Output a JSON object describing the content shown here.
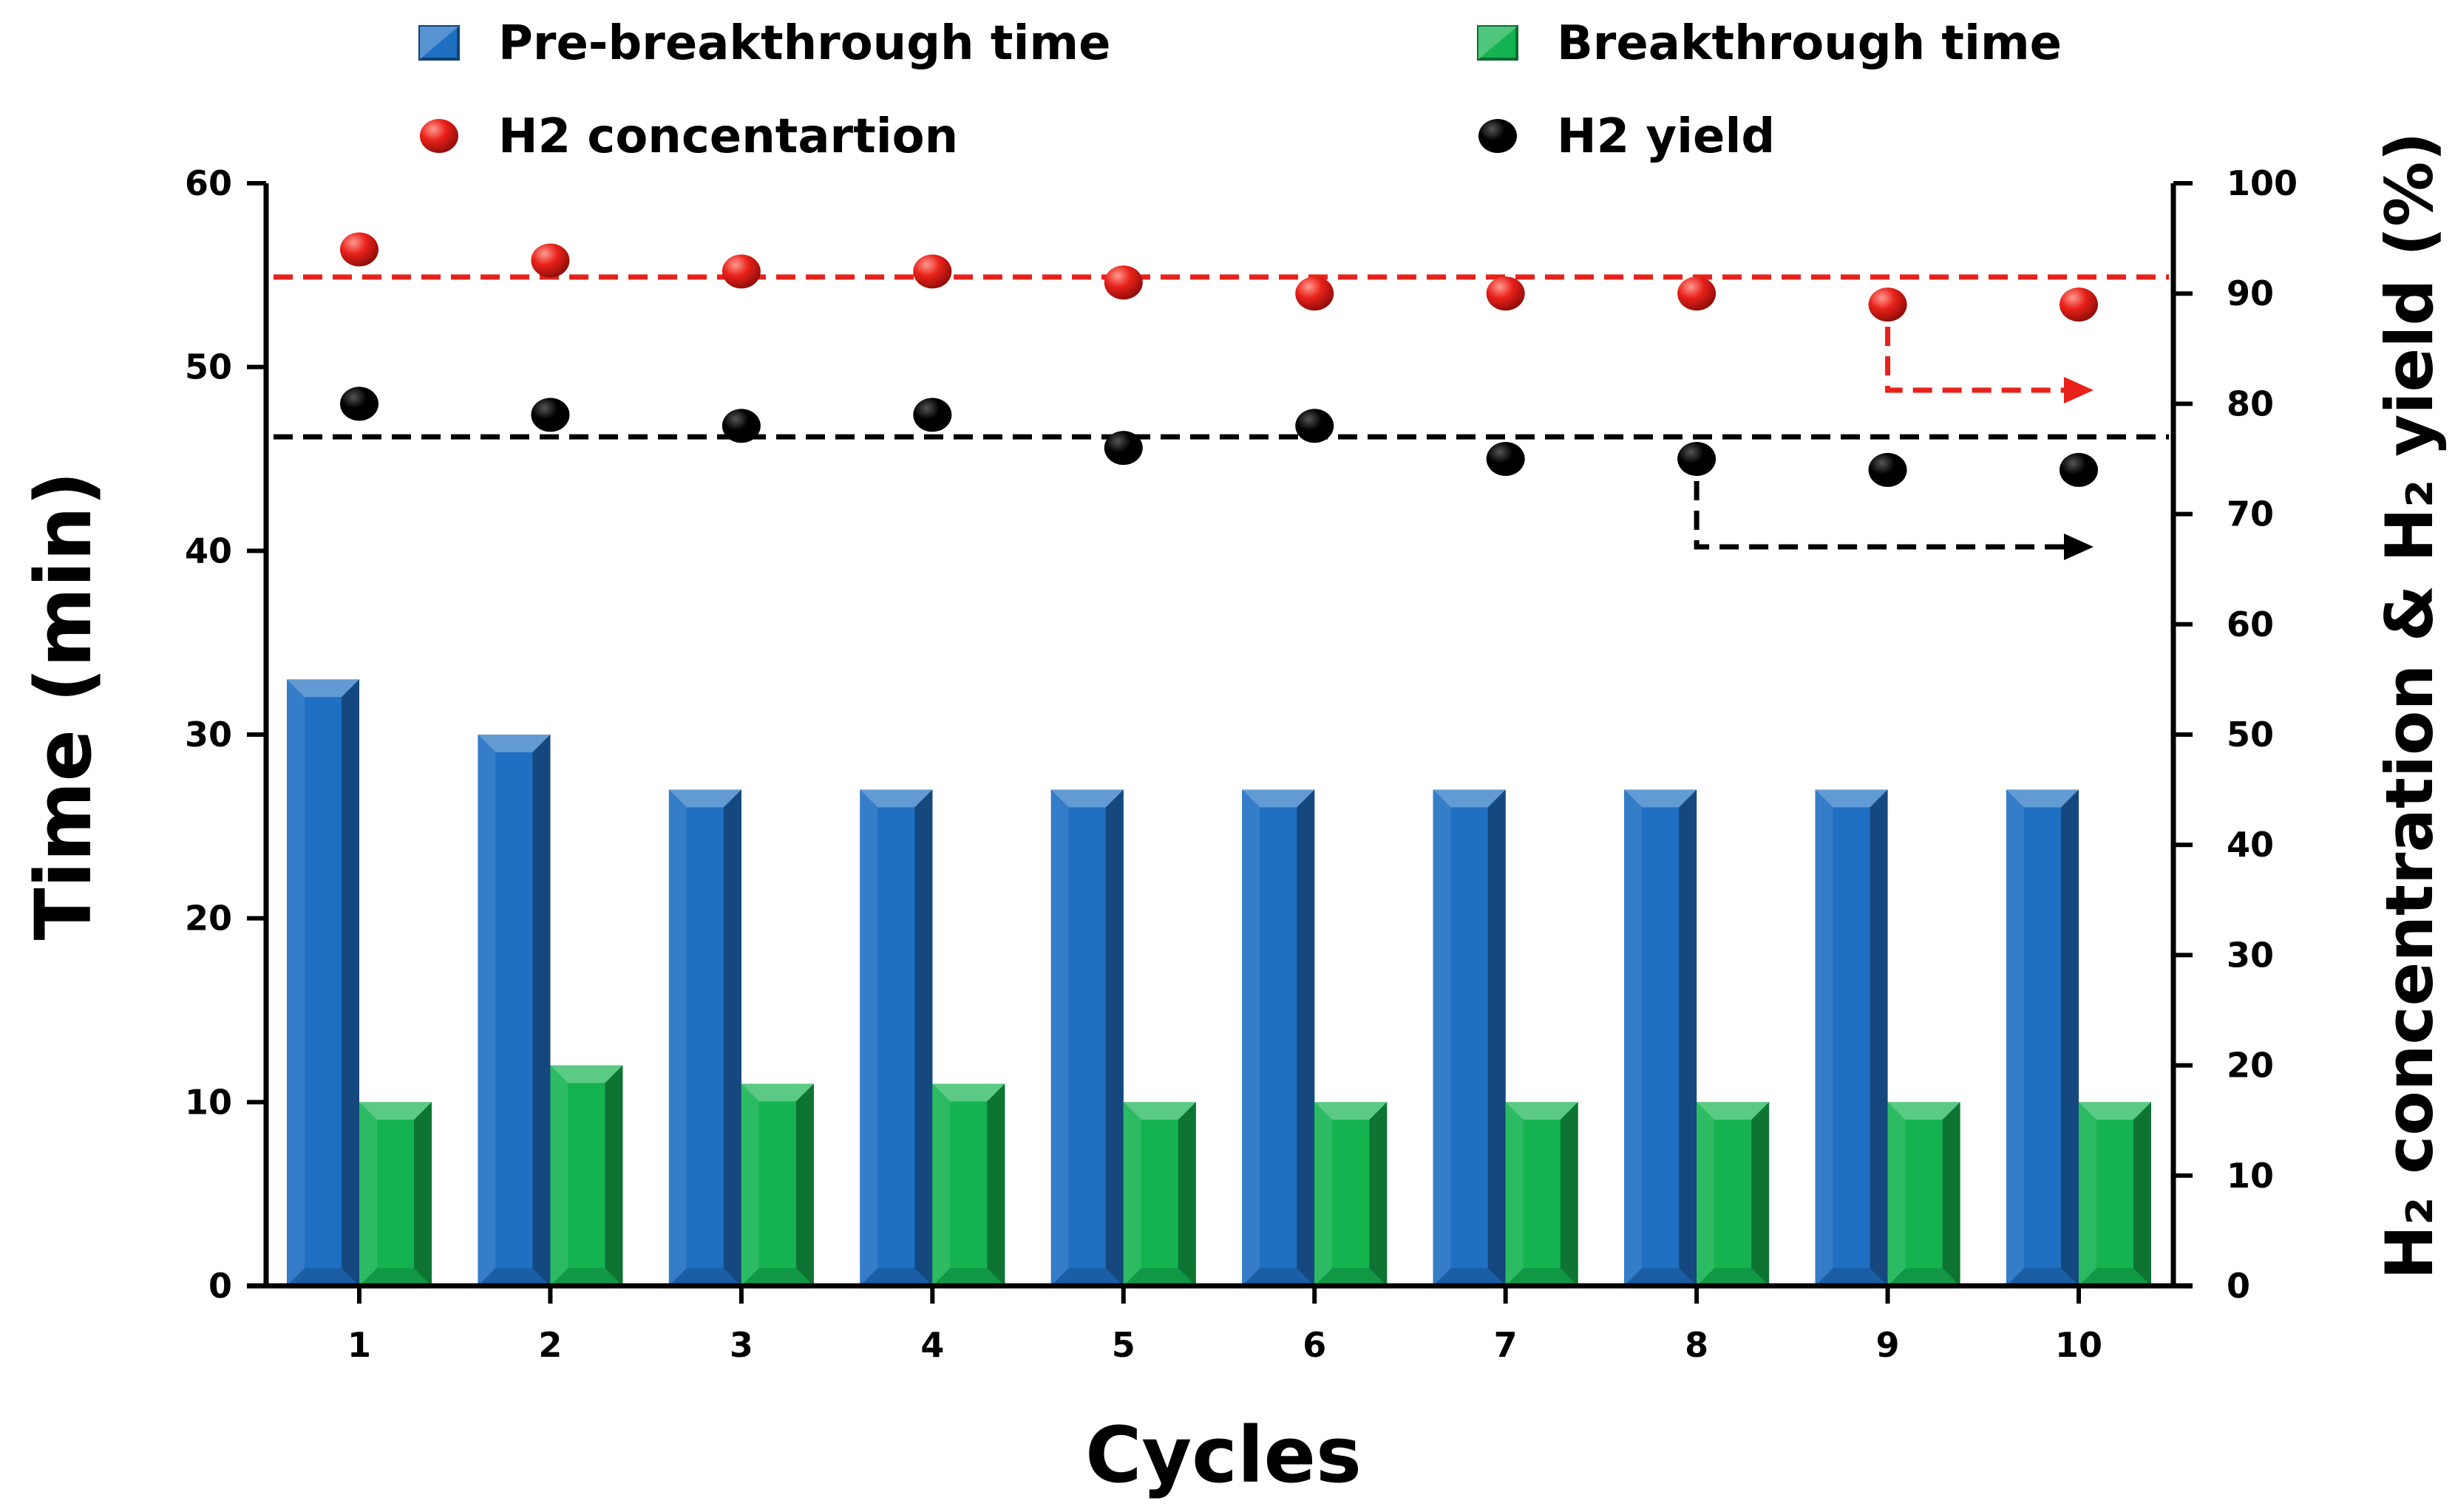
{
  "chart_data": {
    "type": "bar",
    "xlabel": "Cycles",
    "ylabel_left": "Time (min)",
    "ylabel_right": "H₂ concentration & H₂ yield  (%)",
    "categories": [
      "1",
      "2",
      "3",
      "4",
      "5",
      "6",
      "7",
      "8",
      "9",
      "10"
    ],
    "ylim_left": [
      0,
      60
    ],
    "yticks_left": [
      "0",
      "10",
      "20",
      "30",
      "40",
      "50",
      "60"
    ],
    "ylim_right": [
      0,
      100
    ],
    "yticks_right": [
      "0",
      "10",
      "20",
      "30",
      "40",
      "50",
      "60",
      "70",
      "80",
      "90",
      "100"
    ],
    "grid": false,
    "legend_position": "top",
    "bar_series": [
      {
        "name": "Pre-breakthrough time",
        "axis": "left",
        "color": "#1f6fc2",
        "values": [
          33,
          30,
          27,
          27,
          27,
          27,
          27,
          27,
          27,
          27
        ]
      },
      {
        "name": "Breakthrough time",
        "axis": "left",
        "color": "#14b350",
        "values": [
          10,
          12,
          11,
          11,
          10,
          10,
          10,
          10,
          10,
          10
        ]
      }
    ],
    "scatter_series": [
      {
        "name": "H2 concentartion",
        "axis": "right",
        "color": "#e8211a",
        "values": [
          94,
          93,
          92,
          92,
          91,
          90,
          90,
          90,
          89,
          89
        ],
        "reference_line": 91.5
      },
      {
        "name": "H2 yield",
        "axis": "right",
        "color": "#000000",
        "values": [
          80,
          79,
          78,
          79,
          76,
          78,
          75,
          75,
          74,
          74
        ],
        "reference_line": 77
      }
    ]
  }
}
